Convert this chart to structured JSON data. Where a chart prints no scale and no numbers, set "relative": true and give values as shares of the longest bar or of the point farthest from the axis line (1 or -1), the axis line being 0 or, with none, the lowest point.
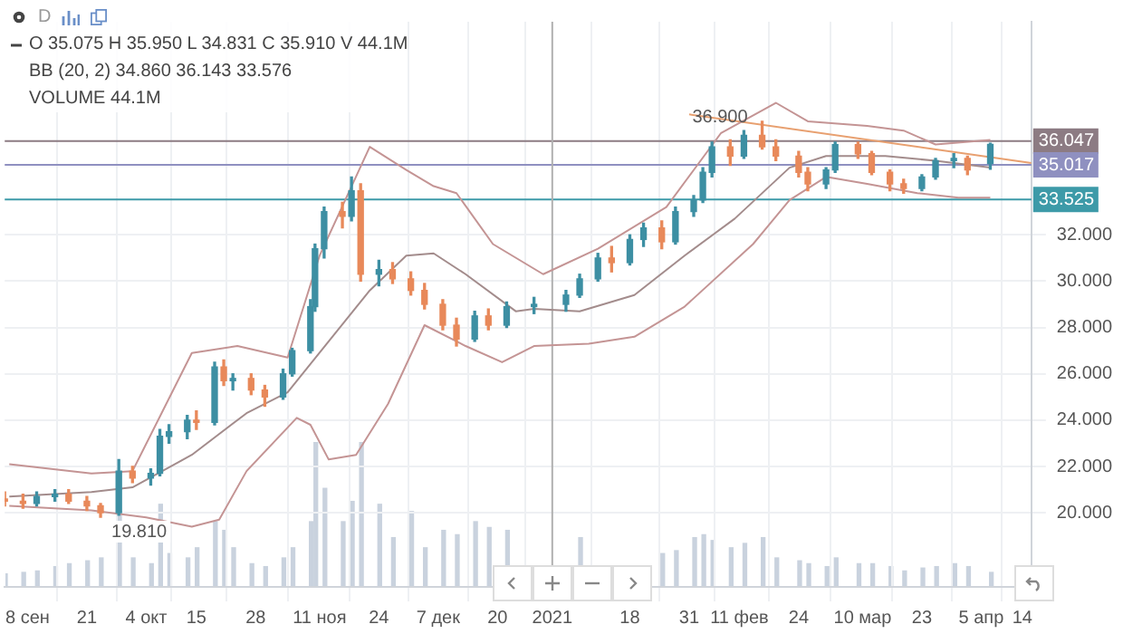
{
  "chart_data": [
    {
      "type": "candlestick",
      "annotations": [
        "D",
        "O 35.075 H 35.950 L 34.831 C 35.910 V 44.1M",
        "BB (20, 2) 34.860 36.143 33.576",
        "VOLUME 44.1M",
        {
          "text": "19.810",
          "x": "2020-09-24",
          "y": 19.81
        },
        {
          "text": "36.900",
          "x": "2021-02-16",
          "y": 36.9
        }
      ],
      "x": [
        "2020-09-03",
        "2020-09-07",
        "2020-09-10",
        "2020-09-14",
        "2020-09-17",
        "2020-09-21",
        "2020-09-24",
        "2020-09-28",
        "2020-10-01",
        "2020-10-05",
        "2020-10-07",
        "2020-10-09",
        "2020-10-13",
        "2020-10-15",
        "2020-10-19",
        "2020-10-21",
        "2020-10-23",
        "2020-10-27",
        "2020-10-30",
        "2020-11-03",
        "2020-11-05",
        "2020-11-09",
        "2020-11-10",
        "2020-11-12",
        "2020-11-16",
        "2020-11-18",
        "2020-11-20",
        "2020-11-24",
        "2020-11-27",
        "2020-12-01",
        "2020-12-04",
        "2020-12-08",
        "2020-12-11",
        "2020-12-15",
        "2020-12-18",
        "2020-12-22",
        "2020-12-28",
        "2021-01-04",
        "2021-01-07",
        "2021-01-11",
        "2021-01-14",
        "2021-01-18",
        "2021-01-21",
        "2021-01-25",
        "2021-01-28",
        "2021-02-01",
        "2021-02-03",
        "2021-02-05",
        "2021-02-09",
        "2021-02-12",
        "2021-02-16",
        "2021-02-19",
        "2021-02-24",
        "2021-02-26",
        "2021-03-02",
        "2021-03-04",
        "2021-03-09",
        "2021-03-12",
        "2021-03-16",
        "2021-03-19",
        "2021-03-23",
        "2021-03-26",
        "2021-03-30",
        "2021-04-02",
        "2021-04-07"
      ],
      "ohlc": [
        [
          20.6,
          20.9,
          20.3,
          20.5
        ],
        [
          20.5,
          20.8,
          20.2,
          20.4
        ],
        [
          20.4,
          20.9,
          20.3,
          20.7
        ],
        [
          20.7,
          21.0,
          20.5,
          20.8
        ],
        [
          20.8,
          21.0,
          20.4,
          20.5
        ],
        [
          20.5,
          20.7,
          20.1,
          20.3
        ],
        [
          20.3,
          20.4,
          19.81,
          20.0
        ],
        [
          20.0,
          22.3,
          19.9,
          21.8
        ],
        [
          21.8,
          22.0,
          21.3,
          21.5
        ],
        [
          21.5,
          21.9,
          21.2,
          21.7
        ],
        [
          21.7,
          23.6,
          21.6,
          23.3
        ],
        [
          23.3,
          23.8,
          23.0,
          23.5
        ],
        [
          23.5,
          24.2,
          23.2,
          24.0
        ],
        [
          24.0,
          24.4,
          23.6,
          23.9
        ],
        [
          23.9,
          26.5,
          23.8,
          26.3
        ],
        [
          26.3,
          26.6,
          25.5,
          25.7
        ],
        [
          25.7,
          26.0,
          25.3,
          25.8
        ],
        [
          25.8,
          26.0,
          25.1,
          25.3
        ],
        [
          25.3,
          25.5,
          24.6,
          25.0
        ],
        [
          25.0,
          26.2,
          24.9,
          26.0
        ],
        [
          26.0,
          27.1,
          25.9,
          27.0
        ],
        [
          27.0,
          29.2,
          26.9,
          28.9
        ],
        [
          28.9,
          31.6,
          28.7,
          31.4
        ],
        [
          31.4,
          33.2,
          31.0,
          33.0
        ],
        [
          33.0,
          33.4,
          32.3,
          32.8
        ],
        [
          32.8,
          34.5,
          32.6,
          33.9
        ],
        [
          33.9,
          34.2,
          30.0,
          30.3
        ],
        [
          30.3,
          30.9,
          29.8,
          30.5
        ],
        [
          30.5,
          30.8,
          29.9,
          30.1
        ],
        [
          30.1,
          30.4,
          29.4,
          29.6
        ],
        [
          29.6,
          29.9,
          28.8,
          29.0
        ],
        [
          29.0,
          29.2,
          27.9,
          28.1
        ],
        [
          28.1,
          28.4,
          27.2,
          27.5
        ],
        [
          27.5,
          28.7,
          27.4,
          28.5
        ],
        [
          28.5,
          28.8,
          27.9,
          28.1
        ],
        [
          28.1,
          29.1,
          28.0,
          28.9
        ],
        [
          28.9,
          29.3,
          28.6,
          29.0
        ],
        [
          29.0,
          29.6,
          28.7,
          29.4
        ],
        [
          29.4,
          30.3,
          29.3,
          30.1
        ],
        [
          30.1,
          31.2,
          30.0,
          31.0
        ],
        [
          31.0,
          31.5,
          30.4,
          30.8
        ],
        [
          30.8,
          32.0,
          30.7,
          31.8
        ],
        [
          31.8,
          32.5,
          31.5,
          32.3
        ],
        [
          32.3,
          32.6,
          31.4,
          31.7
        ],
        [
          31.7,
          33.2,
          31.6,
          33.0
        ],
        [
          33.0,
          33.7,
          32.8,
          33.5
        ],
        [
          33.5,
          34.9,
          33.4,
          34.7
        ],
        [
          34.7,
          36.0,
          34.5,
          35.8
        ],
        [
          35.8,
          36.1,
          35.0,
          35.4
        ],
        [
          35.4,
          36.5,
          35.3,
          36.3
        ],
        [
          36.3,
          36.9,
          35.7,
          35.8
        ],
        [
          35.8,
          36.1,
          35.2,
          35.4
        ],
        [
          35.4,
          35.6,
          34.5,
          34.7
        ],
        [
          34.7,
          34.9,
          33.9,
          34.2
        ],
        [
          34.2,
          34.9,
          34.0,
          34.8
        ],
        [
          34.8,
          36.0,
          34.7,
          35.9
        ],
        [
          35.9,
          36.0,
          35.3,
          35.5
        ],
        [
          35.5,
          35.6,
          34.6,
          34.7
        ],
        [
          34.7,
          34.8,
          33.9,
          34.2
        ],
        [
          34.2,
          34.4,
          33.8,
          34.0
        ],
        [
          34.0,
          34.6,
          33.9,
          34.5
        ],
        [
          34.5,
          35.3,
          34.4,
          35.2
        ],
        [
          35.2,
          35.5,
          34.9,
          35.3
        ],
        [
          35.3,
          35.4,
          34.6,
          34.8
        ],
        [
          35.075,
          35.95,
          34.831,
          35.91
        ]
      ],
      "colors": [
        "#e8895a",
        "#e8895a",
        "#3d8fa3",
        "#3d8fa3",
        "#e8895a",
        "#e8895a",
        "#e8895a",
        "#3d8fa3",
        "#e8895a",
        "#3d8fa3",
        "#3d8fa3",
        "#3d8fa3",
        "#3d8fa3",
        "#e8895a",
        "#3d8fa3",
        "#e8895a",
        "#3d8fa3",
        "#e8895a",
        "#e8895a",
        "#3d8fa3",
        "#3d8fa3",
        "#3d8fa3",
        "#3d8fa3",
        "#3d8fa3",
        "#e8895a",
        "#3d8fa3",
        "#e8895a",
        "#3d8fa3",
        "#e8895a",
        "#e8895a",
        "#e8895a",
        "#e8895a",
        "#e8895a",
        "#3d8fa3",
        "#e8895a",
        "#3d8fa3",
        "#3d8fa3",
        "#3d8fa3",
        "#3d8fa3",
        "#3d8fa3",
        "#e8895a",
        "#3d8fa3",
        "#3d8fa3",
        "#e8895a",
        "#3d8fa3",
        "#3d8fa3",
        "#3d8fa3",
        "#3d8fa3",
        "#e8895a",
        "#3d8fa3",
        "#e8895a",
        "#e8895a",
        "#e8895a",
        "#e8895a",
        "#3d8fa3",
        "#3d8fa3",
        "#e8895a",
        "#e8895a",
        "#e8895a",
        "#e8895a",
        "#3d8fa3",
        "#3d8fa3",
        "#3d8fa3",
        "#e8895a",
        "#3d8fa3"
      ],
      "series": [
        {
          "type": "line",
          "color": "#c49494",
          "x": [
            "2020-09-04",
            "2020-09-22",
            "2020-10-01",
            "2020-10-14",
            "2020-10-24",
            "2020-11-04",
            "2020-11-11",
            "2020-11-22",
            "2020-11-30",
            "2020-12-06",
            "2020-12-11",
            "2020-12-19",
            "2020-12-30",
            "2021-01-11",
            "2021-01-26",
            "2021-02-07",
            "2021-02-19",
            "2021-02-26",
            "2021-03-11",
            "2021-03-19",
            "2021-03-26",
            "2021-04-07"
          ],
          "values": [
            22.1,
            21.7,
            21.8,
            26.9,
            27.2,
            26.7,
            31.1,
            35.8,
            34.8,
            34.1,
            33.8,
            31.6,
            30.3,
            31.4,
            33.2,
            36.4,
            37.7,
            36.9,
            36.7,
            36.5,
            35.9,
            36.1
          ]
        },
        {
          "type": "line",
          "color": "#a38c8c",
          "x": [
            "2020-09-04",
            "2020-09-22",
            "2020-10-01",
            "2020-10-14",
            "2020-10-26",
            "2020-11-04",
            "2020-11-13",
            "2020-11-22",
            "2020-11-30",
            "2020-12-06",
            "2020-12-13",
            "2020-12-24",
            "2020-12-28",
            "2021-01-07",
            "2021-01-19",
            "2021-01-30",
            "2021-02-10",
            "2021-02-22",
            "2021-03-02",
            "2021-03-15",
            "2021-03-26",
            "2021-04-07"
          ],
          "values": [
            20.7,
            20.9,
            21.1,
            22.5,
            24.3,
            25.2,
            27.4,
            29.6,
            31.1,
            31.2,
            30.3,
            28.7,
            28.8,
            28.7,
            29.4,
            31.1,
            32.7,
            34.9,
            35.4,
            35.4,
            35.2,
            34.9
          ]
        },
        {
          "type": "line",
          "color": "#c49494",
          "x": [
            "2020-09-04",
            "2020-09-22",
            "2020-10-04",
            "2020-10-14",
            "2020-10-20",
            "2020-10-26",
            "2020-11-06",
            "2020-11-09",
            "2020-11-13",
            "2020-11-19",
            "2020-11-26",
            "2020-12-04",
            "2020-12-13",
            "2020-12-21",
            "2020-12-28",
            "2021-01-09",
            "2021-01-19",
            "2021-01-30",
            "2021-02-14",
            "2021-02-22",
            "2021-03-02",
            "2021-03-11",
            "2021-03-22",
            "2021-03-31",
            "2021-04-07"
          ],
          "values": [
            20.3,
            20.1,
            19.8,
            19.4,
            19.7,
            21.8,
            24.1,
            23.8,
            22.3,
            22.5,
            24.7,
            28.1,
            27.2,
            26.5,
            27.2,
            27.3,
            27.6,
            28.9,
            31.6,
            33.5,
            34.5,
            34.2,
            33.8,
            33.6,
            33.6
          ]
        },
        {
          "type": "line",
          "color": "#e8a070",
          "x": [
            "2021-01-31",
            "2021-04-16"
          ],
          "values": [
            37.2,
            35.1
          ]
        }
      ],
      "ref_lines": [
        {
          "axis": "y",
          "value": 36.047,
          "label": "36.047",
          "color": "#8c7b83"
        },
        {
          "axis": "y",
          "value": 35.017,
          "label": "35.017",
          "color": "#8f90c0"
        },
        {
          "axis": "y",
          "value": 33.525,
          "label": "33.525",
          "color": "#3d9aa8"
        },
        {
          "axis": "x",
          "value": "2021-01-01",
          "label": null,
          "color": "#b0b0b0"
        }
      ],
      "xlim": [
        "2020-09-03",
        "2021-04-16"
      ],
      "xticks": [
        {
          "value": "2020-09-08",
          "label": "8 сен"
        },
        {
          "value": "2020-09-21",
          "label": "21"
        },
        {
          "value": "2020-10-04",
          "label": "4 окт"
        },
        {
          "value": "2020-10-15",
          "label": "15"
        },
        {
          "value": "2020-10-28",
          "label": "28"
        },
        {
          "value": "2020-11-11",
          "label": "11 ноя"
        },
        {
          "value": "2020-11-24",
          "label": "24"
        },
        {
          "value": "2020-12-07",
          "label": "7 дек"
        },
        {
          "value": "2020-12-20",
          "label": "20"
        },
        {
          "value": "2021-01-01",
          "label": "2021"
        },
        {
          "value": "2021-01-18",
          "label": "18"
        },
        {
          "value": "2021-01-31",
          "label": "31"
        },
        {
          "value": "2021-02-11",
          "label": "11 фев"
        },
        {
          "value": "2021-02-24",
          "label": "24"
        },
        {
          "value": "2021-03-10",
          "label": "10 мар"
        },
        {
          "value": "2021-03-23",
          "label": "23"
        },
        {
          "value": "2021-04-05",
          "label": "5 апр"
        },
        {
          "value": "2021-04-14",
          "label": "14"
        }
      ],
      "ylim": [
        16.8,
        41.2
      ],
      "yticks": [
        {
          "value": 20,
          "label": "20.000"
        },
        {
          "value": 22,
          "label": "22.000"
        },
        {
          "value": 24,
          "label": "24.000"
        },
        {
          "value": 26,
          "label": "26.000"
        },
        {
          "value": 28,
          "label": "28.000"
        },
        {
          "value": 30,
          "label": "30.000"
        },
        {
          "value": 32,
          "label": "32.000"
        }
      ],
      "grid": true,
      "legend": false
    },
    {
      "type": "bar",
      "relative": true,
      "color": "#c9d2de",
      "tick_labels": false,
      "xlim": [
        "2020-09-03",
        "2021-04-16"
      ],
      "x": [
        "2020-09-03",
        "2020-09-07",
        "2020-09-10",
        "2020-09-14",
        "2020-09-17",
        "2020-09-21",
        "2020-09-24",
        "2020-09-28",
        "2020-10-01",
        "2020-10-05",
        "2020-10-07",
        "2020-10-09",
        "2020-10-13",
        "2020-10-15",
        "2020-10-19",
        "2020-10-21",
        "2020-10-23",
        "2020-10-27",
        "2020-10-30",
        "2020-11-03",
        "2020-11-05",
        "2020-11-09",
        "2020-11-10",
        "2020-11-12",
        "2020-11-16",
        "2020-11-18",
        "2020-11-20",
        "2020-11-24",
        "2020-11-27",
        "2020-12-01",
        "2020-12-04",
        "2020-12-08",
        "2020-12-11",
        "2020-12-15",
        "2020-12-18",
        "2020-12-22",
        "2020-12-28",
        "2021-01-04",
        "2021-01-07",
        "2021-01-11",
        "2021-01-14",
        "2021-01-18",
        "2021-01-21",
        "2021-01-25",
        "2021-01-28",
        "2021-02-01",
        "2021-02-03",
        "2021-02-05",
        "2021-02-09",
        "2021-02-12",
        "2021-02-16",
        "2021-02-19",
        "2021-02-24",
        "2021-02-26",
        "2021-03-02",
        "2021-03-04",
        "2021-03-09",
        "2021-03-12",
        "2021-03-16",
        "2021-03-19",
        "2021-03-23",
        "2021-03-26",
        "2021-03-30",
        "2021-04-02",
        "2021-04-07"
      ],
      "values": [
        0.09,
        0.1,
        0.11,
        0.14,
        0.16,
        0.18,
        0.2,
        0.52,
        0.2,
        0.16,
        0.57,
        0.23,
        0.2,
        0.27,
        0.45,
        0.39,
        0.27,
        0.16,
        0.14,
        0.2,
        0.27,
        0.45,
        1,
        0.68,
        0.45,
        0.59,
        1,
        0.57,
        0.34,
        0.52,
        0.27,
        0.39,
        0.36,
        0.45,
        0.41,
        0.39,
        null,
        null,
        0.34,
        null,
        null,
        null,
        null,
        0.23,
        0.25,
        0.34,
        0.36,
        0.32,
        0.27,
        0.3,
        0.34,
        0.2,
        0.18,
        0.16,
        0.14,
        0.2,
        0.16,
        0.16,
        0.14,
        0.11,
        0.13,
        0.14,
        0.16,
        0.14,
        0.1
      ]
    }
  ]
}
